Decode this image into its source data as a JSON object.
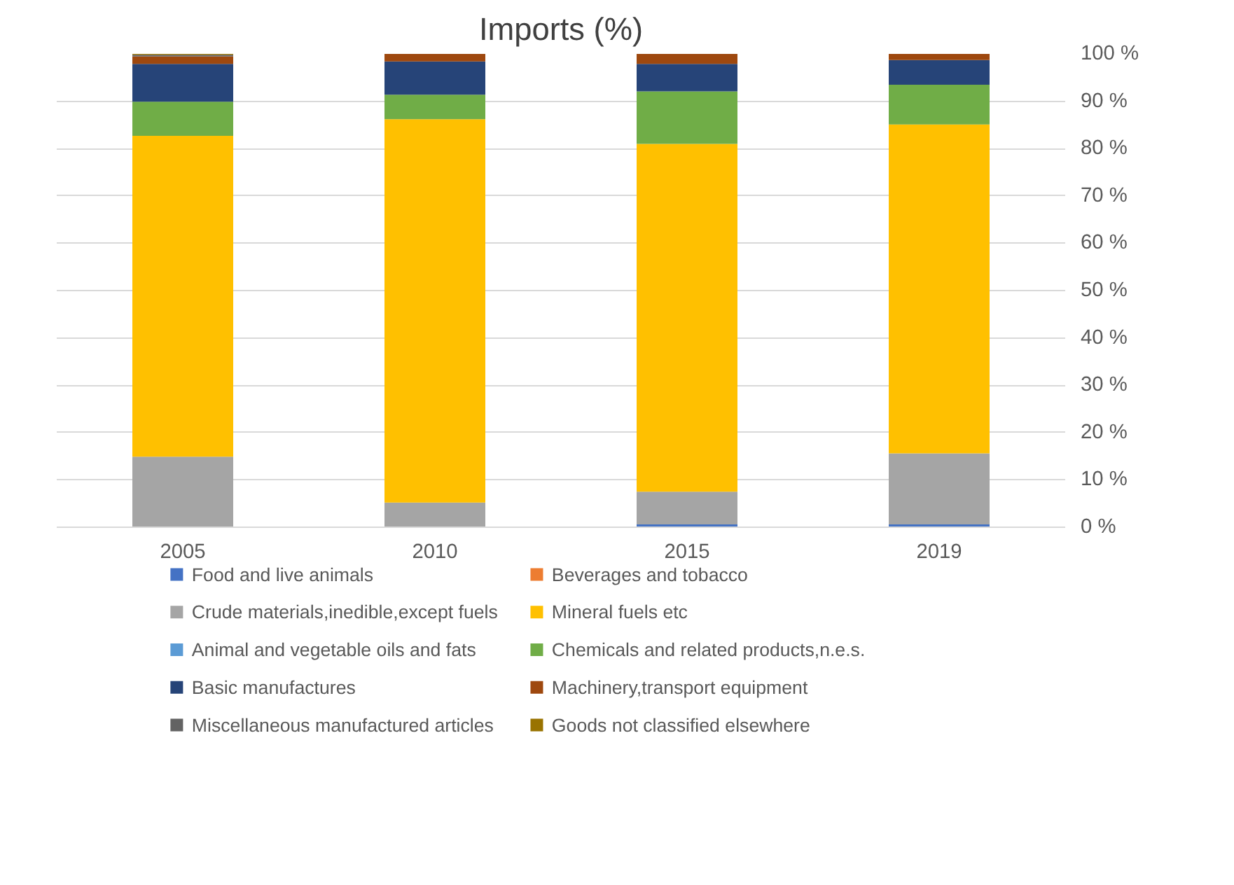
{
  "chart_data": {
    "type": "bar",
    "title": "Imports (%)",
    "stacked": true,
    "categories": [
      "2005",
      "2010",
      "2015",
      "2019"
    ],
    "series": [
      {
        "name": "Food and live animals",
        "color": "#4472c4",
        "values": [
          0,
          0,
          0.6,
          0.6
        ]
      },
      {
        "name": "Beverages and tobacco",
        "color": "#ed7d31",
        "values": [
          0,
          0,
          0,
          0
        ]
      },
      {
        "name": "Crude materials,inedible,except fuels",
        "color": "#a5a5a5",
        "values": [
          14.9,
          5.2,
          6.9,
          15.0
        ]
      },
      {
        "name": "Mineral fuels etc",
        "color": "#ffc000",
        "values": [
          67.8,
          81.0,
          73.5,
          69.5
        ]
      },
      {
        "name": "Animal and vegetable oils and fats",
        "color": "#5b9bd5",
        "values": [
          0,
          0,
          0,
          0
        ]
      },
      {
        "name": "Chemicals and related products,n.e.s.",
        "color": "#70ad47",
        "values": [
          7.2,
          5.2,
          11.1,
          8.4
        ]
      },
      {
        "name": "Basic manufactures",
        "color": "#264478",
        "values": [
          8.0,
          7.0,
          5.8,
          5.2
        ]
      },
      {
        "name": "Machinery,transport equipment",
        "color": "#9e480e",
        "values": [
          1.6,
          1.6,
          2.1,
          1.3
        ]
      },
      {
        "name": "Miscellaneous manufactured articles",
        "color": "#636363",
        "values": [
          0.3,
          0,
          0,
          0
        ]
      },
      {
        "name": "Goods not classified elsewhere",
        "color": "#997300",
        "values": [
          0.2,
          0.2,
          0.1,
          0
        ]
      }
    ],
    "ylim": [
      0,
      100
    ],
    "yticks": [
      {
        "value": 0,
        "label": "0 %"
      },
      {
        "value": 10,
        "label": "10 %"
      },
      {
        "value": 20,
        "label": "20 %"
      },
      {
        "value": 30,
        "label": "30 %"
      },
      {
        "value": 40,
        "label": "40 %"
      },
      {
        "value": 50,
        "label": "50 %"
      },
      {
        "value": 60,
        "label": "60 %"
      },
      {
        "value": 70,
        "label": "70 %"
      },
      {
        "value": 80,
        "label": "80 %"
      },
      {
        "value": 90,
        "label": "90 %"
      },
      {
        "value": 100,
        "label": "100 %"
      }
    ],
    "grid": "y",
    "legend": "bottom"
  }
}
